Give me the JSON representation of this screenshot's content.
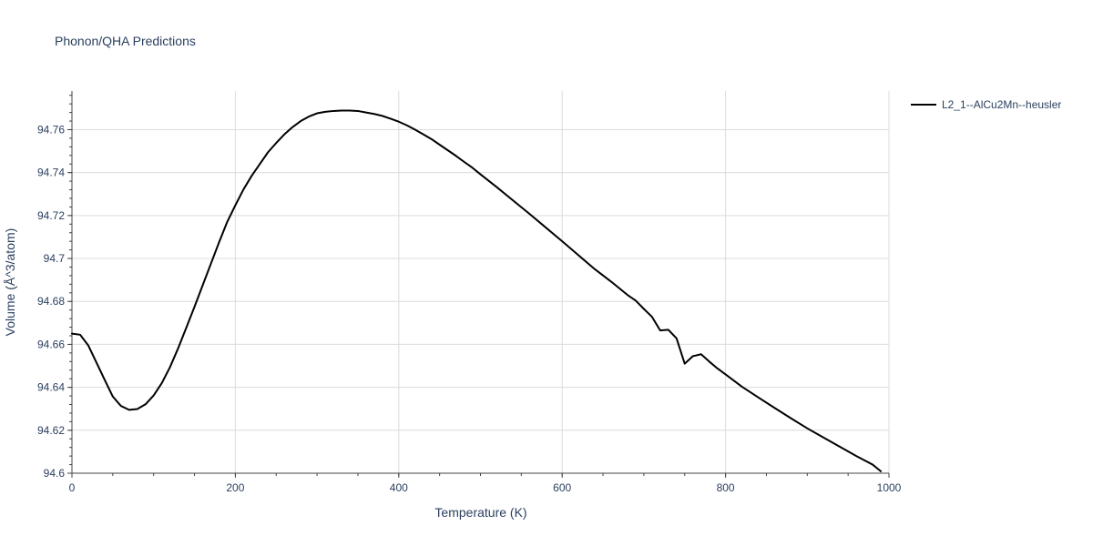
{
  "chart_data": {
    "type": "line",
    "title": "Phonon/QHA Predictions",
    "xlabel": "Temperature (K)",
    "ylabel": "Volume (Å^3/atom)",
    "xlim": [
      0,
      1000
    ],
    "ylim": [
      94.6,
      94.778
    ],
    "x_ticks": [
      0,
      200,
      400,
      600,
      800,
      1000
    ],
    "x_tick_labels": [
      "0",
      "200",
      "400",
      "600",
      "800",
      "1000"
    ],
    "y_ticks": [
      94.6,
      94.62,
      94.64,
      94.66,
      94.68,
      94.7,
      94.72,
      94.74,
      94.76
    ],
    "y_tick_labels": [
      "94.6",
      "94.62",
      "94.64",
      "94.66",
      "94.68",
      "94.7",
      "94.72",
      "94.74",
      "94.76"
    ],
    "grid": true,
    "legend_position": "top-right",
    "series": [
      {
        "name": "L2_1--AlCu2Mn--heusler",
        "color": "#000000",
        "x": [
          0,
          10,
          20,
          30,
          40,
          50,
          60,
          70,
          80,
          90,
          100,
          110,
          120,
          130,
          140,
          150,
          160,
          170,
          180,
          190,
          200,
          210,
          220,
          230,
          240,
          250,
          260,
          270,
          280,
          290,
          300,
          310,
          320,
          330,
          340,
          350,
          360,
          370,
          380,
          390,
          400,
          410,
          420,
          430,
          440,
          450,
          460,
          470,
          480,
          490,
          500,
          520,
          540,
          560,
          580,
          600,
          620,
          640,
          660,
          680,
          690,
          700,
          710,
          720,
          730,
          740,
          750,
          760,
          770,
          780,
          790,
          800,
          820,
          840,
          860,
          880,
          900,
          920,
          940,
          960,
          980,
          990
        ],
        "y": [
          94.665,
          94.6645,
          94.6595,
          94.6515,
          94.6435,
          94.6357,
          94.6313,
          94.6295,
          94.6299,
          94.6321,
          94.6362,
          94.642,
          94.6494,
          94.6582,
          94.6678,
          94.6775,
          94.6875,
          94.6975,
          94.7075,
          94.717,
          94.7248,
          94.7322,
          94.7385,
          94.744,
          94.7495,
          94.7538,
          94.7578,
          94.7612,
          94.764,
          94.7661,
          94.7676,
          94.7683,
          94.7687,
          94.7689,
          94.7689,
          94.7687,
          94.768,
          94.7673,
          94.7664,
          94.7651,
          94.7637,
          94.762,
          94.76,
          94.7578,
          94.7556,
          94.753,
          94.7504,
          94.7478,
          94.745,
          94.7423,
          94.7392,
          94.7332,
          94.727,
          94.7208,
          94.7144,
          94.708,
          94.7015,
          94.695,
          94.6892,
          94.683,
          94.6804,
          94.6765,
          94.6728,
          94.6665,
          94.6668,
          94.6628,
          94.651,
          94.6545,
          94.6554,
          94.652,
          94.6488,
          94.646,
          94.6403,
          94.6353,
          94.6304,
          94.6256,
          94.6209,
          94.6166,
          94.6123,
          94.608,
          94.604,
          94.6009
        ]
      }
    ]
  }
}
